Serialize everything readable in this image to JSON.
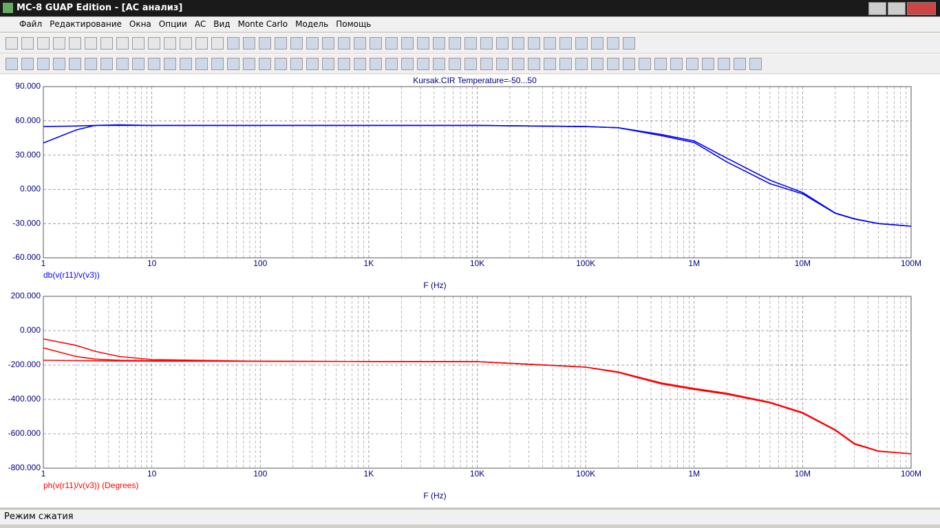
{
  "window": {
    "title": "MC-8 GUAP Edition - [AC анализ]"
  },
  "menu": [
    "Файл",
    "Редактирование",
    "Окна",
    "Опции",
    "AC",
    "Вид",
    "Monte Carlo",
    "Модель",
    "Помощь"
  ],
  "status": {
    "text": "Режим сжатия"
  },
  "chart_data": [
    {
      "type": "line",
      "title": "Kursak.CIR Temperature=-50...50",
      "xlabel": "F (Hz)",
      "ylabel": "db(v(r11)/v(v3))",
      "xscale": "log",
      "grid": true,
      "minor_grid": true,
      "xlim": [
        1,
        100000000
      ],
      "xticks": [
        1,
        10,
        100,
        {
          "value": 1000,
          "label": "1K"
        },
        {
          "value": 10000,
          "label": "10K"
        },
        {
          "value": 100000,
          "label": "100K"
        },
        {
          "value": 1000000,
          "label": "1M"
        },
        {
          "value": 10000000,
          "label": "10M"
        },
        {
          "value": 100000000,
          "label": "100M"
        }
      ],
      "ylim": [
        -60,
        90
      ],
      "yticks": [
        {
          "value": 90,
          "label": "90.000"
        },
        {
          "value": 60,
          "label": "60.000"
        },
        {
          "value": 30,
          "label": "30.000"
        },
        {
          "value": 0,
          "label": "0.000"
        },
        {
          "value": -30,
          "label": "-30.000"
        },
        {
          "value": -60,
          "label": "-60.000"
        }
      ],
      "x": [
        1,
        2,
        3,
        5,
        10,
        100,
        1000,
        10000,
        100000,
        200000,
        500000,
        1000000,
        2000000,
        5000000,
        10000000,
        20000000,
        30000000,
        50000000,
        100000000
      ],
      "series": [
        {
          "name": "db(v(r11)/v(v3))",
          "color": "#0000ff",
          "values": [
            55,
            55.5,
            56,
            56.5,
            56,
            56,
            56,
            56,
            55,
            54,
            48,
            42.4,
            27.3,
            8,
            -2.8,
            -20.8,
            -25.7,
            -30,
            -32.3
          ]
        },
        {
          "color": "#0000ff",
          "values": [
            40.6,
            52,
            56,
            56,
            56,
            56,
            56,
            56,
            55,
            54,
            47,
            41,
            24,
            5,
            -4,
            -21,
            -26,
            -30,
            -32.3
          ]
        }
      ]
    },
    {
      "type": "line",
      "xlabel": "F (Hz)",
      "ylabel": "ph(v(r11)/v(v3)) (Degrees)",
      "xscale": "log",
      "grid": true,
      "minor_grid": true,
      "xlim": [
        1,
        100000000
      ],
      "xticks": [
        1,
        10,
        100,
        {
          "value": 1000,
          "label": "1K"
        },
        {
          "value": 10000,
          "label": "10K"
        },
        {
          "value": 100000,
          "label": "100K"
        },
        {
          "value": 1000000,
          "label": "1M"
        },
        {
          "value": 10000000,
          "label": "10M"
        },
        {
          "value": 100000000,
          "label": "100M"
        }
      ],
      "ylim": [
        -800,
        200
      ],
      "yticks": [
        {
          "value": 200,
          "label": "200.000"
        },
        {
          "value": 0,
          "label": "0.000"
        },
        {
          "value": -200,
          "label": "-200.000"
        },
        {
          "value": -400,
          "label": "-400.000"
        },
        {
          "value": -600,
          "label": "-600.000"
        },
        {
          "value": -800,
          "label": "-800.000"
        }
      ],
      "x": [
        1,
        2,
        3,
        5,
        10,
        100,
        1000,
        10000,
        100000,
        200000,
        500000,
        1000000,
        2000000,
        5000000,
        10000000,
        20000000,
        30000000,
        50000000,
        100000000
      ],
      "series": [
        {
          "name": "ph(v(r11)/v(v3)) (Degrees)",
          "color": "#ff0000",
          "values": [
            -172,
            -174,
            -175,
            -176,
            -177,
            -178,
            -179,
            -180,
            -212,
            -240,
            -304,
            -336,
            -364,
            -416,
            -476,
            -576,
            -656,
            -700,
            -716
          ]
        },
        {
          "color": "#ff0000",
          "values": [
            -48,
            -85,
            -120,
            -150,
            -168,
            -178,
            -179,
            -180,
            -212,
            -243,
            -310,
            -342,
            -370,
            -420,
            -480,
            -580,
            -660,
            -702,
            -716
          ]
        },
        {
          "color": "#ff0000",
          "values": [
            -100,
            -150,
            -165,
            -172,
            -175,
            -178,
            -179,
            -180,
            -212,
            -241,
            -307,
            -339,
            -367,
            -418,
            -478,
            -578,
            -658,
            -701,
            -716
          ]
        }
      ]
    }
  ]
}
